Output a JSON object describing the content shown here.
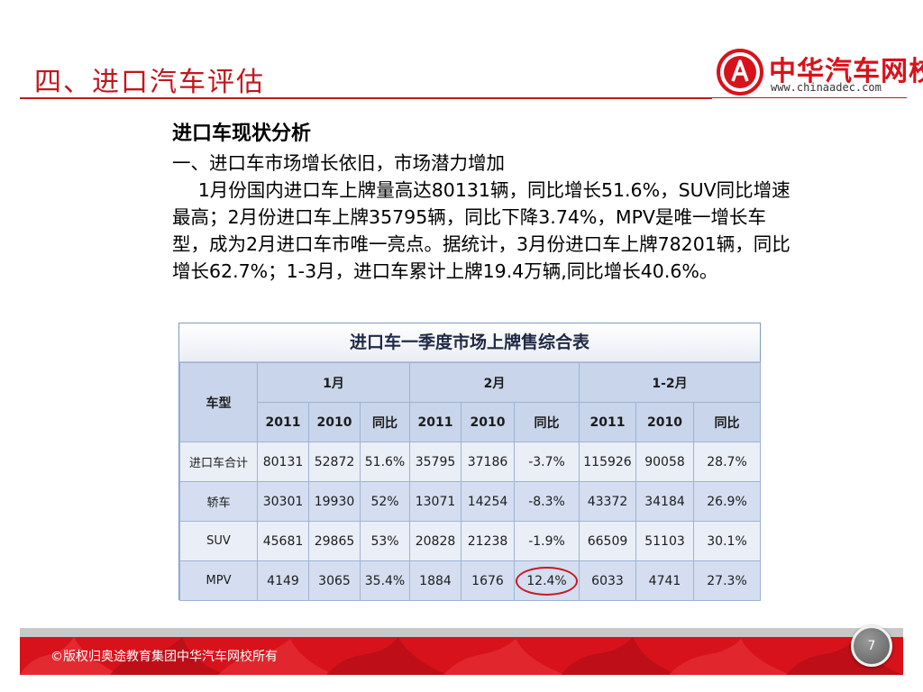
{
  "slide": {
    "title": "四、进口汽车评估",
    "page_number": "7"
  },
  "logo": {
    "name": "中华汽车网校",
    "url": "www.chinaadec.com"
  },
  "content": {
    "heading": "进口车现状分析",
    "subheading": "一、进口车市场增长依旧，市场潜力增加",
    "paragraph": "1月份国内进口车上牌量高达80131辆，同比增长51.6%，SUV同比增速最高；2月份进口车上牌35795辆，同比下降3.74%，MPV是唯一增长车型，成为2月进口车市唯一亮点。据统计，3月份进口车上牌78201辆，同比增长62.7%；1-3月，进口车累计上牌19.4万辆,同比增长40.6%。"
  },
  "table": {
    "caption": "进口车一季度市场上牌售综合表",
    "type_header": "车型",
    "groups": [
      "1月",
      "2月",
      "1-2月"
    ],
    "subheaders": [
      "2011",
      "2010",
      "同比",
      "2011",
      "2010",
      "同比",
      "2011",
      "2010",
      "同比"
    ],
    "rows": [
      {
        "label": "进口车合计",
        "cells": [
          "80131",
          "52872",
          "51.6%",
          "35795",
          "37186",
          "-3.7%",
          "115926",
          "90058",
          "28.7%"
        ]
      },
      {
        "label": "轿车",
        "cells": [
          "30301",
          "19930",
          "52%",
          "13071",
          "14254",
          "-8.3%",
          "43372",
          "34184",
          "26.9%"
        ]
      },
      {
        "label": "SUV",
        "cells": [
          "45681",
          "29865",
          "53%",
          "20828",
          "21238",
          "-1.9%",
          "66509",
          "51103",
          "30.1%"
        ]
      },
      {
        "label": "MPV",
        "cells": [
          "4149",
          "3065",
          "35.4%",
          "1884",
          "1676",
          "12.4%",
          "6033",
          "4741",
          "27.3%"
        ]
      }
    ]
  },
  "footer": {
    "copyright": "©版权归奥途教育集团中华汽车网校所有"
  },
  "colors": {
    "brand_red": "#c0171d",
    "table_header": "#c8d5ea"
  }
}
